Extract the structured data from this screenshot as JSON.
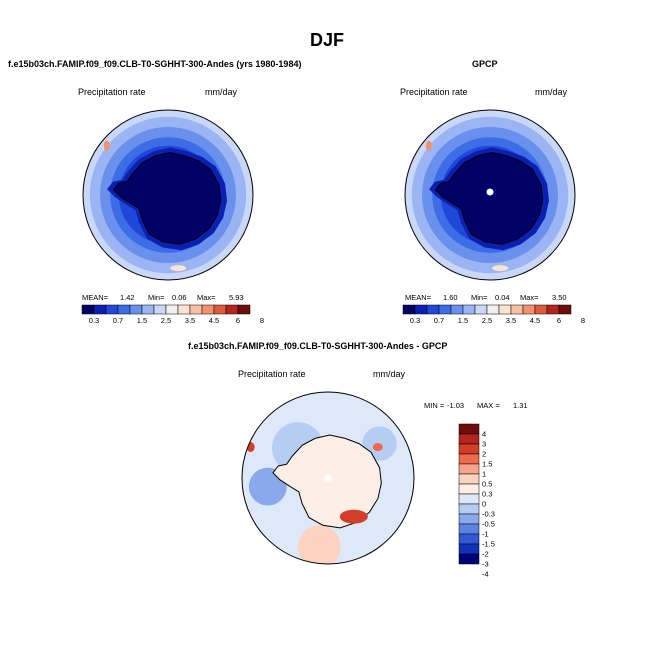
{
  "title": "DJF",
  "palettes": {
    "abs": [
      "#000066",
      "#0b1fb3",
      "#1f48d9",
      "#3c6ce6",
      "#6a90ed",
      "#9bb4f3",
      "#c9d8f8",
      "#f0f0f0",
      "#fde3d0",
      "#f9c0a2",
      "#f3916c",
      "#e05a3b",
      "#b5241d",
      "#6e0c0c"
    ],
    "diff": [
      "#6e0c0c",
      "#b5241d",
      "#d43d2a",
      "#ee6a4a",
      "#f7a58a",
      "#fcd3c0",
      "#fdeee6",
      "#dde9f8",
      "#b5ccf3",
      "#8aa9ec",
      "#5d83e2",
      "#3358d6",
      "#1232b8",
      "#000077"
    ]
  },
  "chart_data": [
    {
      "type": "heatmap",
      "panel": "model",
      "title": "f.e15b03ch.FAMIP.f09_f09.CLB-T0-SGHHT-300-Andes (yrs 1980-1984)",
      "field_label": "Precipitation rate",
      "units": "mm/day",
      "projection": "south polar stereographic",
      "stats": {
        "mean_label": "MEAN=",
        "mean": "1.42",
        "min_label": "Min=",
        "min": "0.06",
        "max_label": "Max=",
        "max": "5.93"
      },
      "contour_levels": [
        "0.3",
        "0.7",
        "1",
        "1.5",
        "2",
        "2.5",
        "3",
        "3.5",
        "4",
        "4.5",
        "5",
        "6",
        "7",
        "8"
      ],
      "colorbar_labels": [
        "0.3",
        "0.7",
        "1.5",
        "2.5",
        "3.5",
        "4.5",
        "6",
        "8"
      ]
    },
    {
      "type": "heatmap",
      "panel": "observations",
      "title": "GPCP",
      "field_label": "Precipitation rate",
      "units": "mm/day",
      "projection": "south polar stereographic",
      "stats": {
        "mean_label": "MEAN=",
        "mean": "1.60",
        "min_label": "Min=",
        "min": "0.04",
        "max_label": "Max=",
        "max": "3.50"
      },
      "contour_levels": [
        "0.3",
        "0.7",
        "1",
        "1.5",
        "2",
        "2.5",
        "3",
        "3.5",
        "4",
        "4.5",
        "5",
        "6",
        "7",
        "8"
      ],
      "colorbar_labels": [
        "0.3",
        "0.7",
        "1.5",
        "2.5",
        "3.5",
        "4.5",
        "6",
        "8"
      ]
    },
    {
      "type": "heatmap",
      "panel": "difference",
      "title": "f.e15b03ch.FAMIP.f09_f09.CLB-T0-SGHHT-300-Andes - GPCP",
      "field_label": "Precipitation rate",
      "units": "mm/day",
      "projection": "south polar stereographic",
      "stats": {
        "min_label": "MIN =",
        "min": "-1.03",
        "max_label": "MAX =",
        "max": "1.31"
      },
      "colorbar_labels": [
        "4",
        "3",
        "2",
        "1.5",
        "1",
        "0.5",
        "0.3",
        "0",
        "-0.3",
        "-0.5",
        "-1",
        "-1.5",
        "-2",
        "-3",
        "-4"
      ]
    }
  ]
}
